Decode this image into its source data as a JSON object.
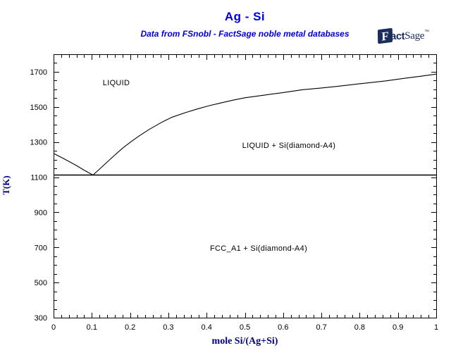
{
  "header": {
    "title": "Ag - Si",
    "subtitle": "Data from FSnobl - FactSage noble metal databases"
  },
  "logo": {
    "f": "F",
    "act": "act",
    "sage": "Sage",
    "tm": "™"
  },
  "colors": {
    "title_blue": "#0000DD",
    "axis_label_navy": "#000080",
    "logo_navy": "#1B2D5B",
    "line_black": "#000000",
    "background": "#FFFFFF"
  },
  "chart_data": {
    "type": "line",
    "title": "Ag - Si",
    "subtitle": "Data from FSnobl - FactSage noble metal databases",
    "xlabel": "mole Si/(Ag+Si)",
    "ylabel": "T(K)",
    "xlim": [
      0,
      1
    ],
    "ylim": [
      300,
      1800
    ],
    "x_major_ticks": [
      0,
      0.1,
      0.2,
      0.3,
      0.4,
      0.5,
      0.6,
      0.7,
      0.8,
      0.9,
      1
    ],
    "x_tick_labels": [
      "0",
      "0.1",
      "0.2",
      "0.3",
      "0.4",
      "0.5",
      "0.6",
      "0.7",
      "0.8",
      "0.9",
      "1"
    ],
    "y_major_ticks": [
      300,
      500,
      700,
      900,
      1100,
      1300,
      1500,
      1700
    ],
    "x_minor_step": 0.02,
    "y_minor_step": 50,
    "grid": false,
    "legend": false,
    "series": [
      {
        "name": "liquidus",
        "color": "#000000",
        "points": [
          [
            0.0,
            1235
          ],
          [
            0.02,
            1213
          ],
          [
            0.04,
            1190
          ],
          [
            0.06,
            1166
          ],
          [
            0.08,
            1140
          ],
          [
            0.103,
            1112
          ],
          [
            0.12,
            1146
          ],
          [
            0.14,
            1186
          ],
          [
            0.16,
            1226
          ],
          [
            0.18,
            1264
          ],
          [
            0.2,
            1298
          ],
          [
            0.223,
            1334
          ],
          [
            0.25,
            1372
          ],
          [
            0.284,
            1414
          ],
          [
            0.31,
            1442
          ],
          [
            0.344,
            1467
          ],
          [
            0.375,
            1488
          ],
          [
            0.406,
            1507
          ],
          [
            0.44,
            1524
          ],
          [
            0.468,
            1538
          ],
          [
            0.5,
            1552
          ],
          [
            0.554,
            1568
          ],
          [
            0.6,
            1582
          ],
          [
            0.65,
            1598
          ],
          [
            0.7,
            1608
          ],
          [
            0.744,
            1618
          ],
          [
            0.8,
            1632
          ],
          [
            0.867,
            1648
          ],
          [
            0.92,
            1664
          ],
          [
            0.96,
            1675
          ],
          [
            1.0,
            1687
          ]
        ]
      },
      {
        "name": "eutectic-isotherm",
        "color": "#000000",
        "points": [
          [
            0,
            1112
          ],
          [
            1,
            1112
          ]
        ]
      }
    ],
    "invariant_points": {
      "eutectic": {
        "x": 0.103,
        "T": 1112
      },
      "Ag_melting_T": 1235,
      "Si_melting_T": 1687
    },
    "region_labels": [
      {
        "text": "LIQUID",
        "x": 0.164,
        "T": 1640
      },
      {
        "text": "LIQUID + Si(diamond-A4)",
        "x": 0.615,
        "T": 1282
      },
      {
        "text": "FCC_A1 + Si(diamond-A4)",
        "x": 0.536,
        "T": 697
      }
    ]
  }
}
